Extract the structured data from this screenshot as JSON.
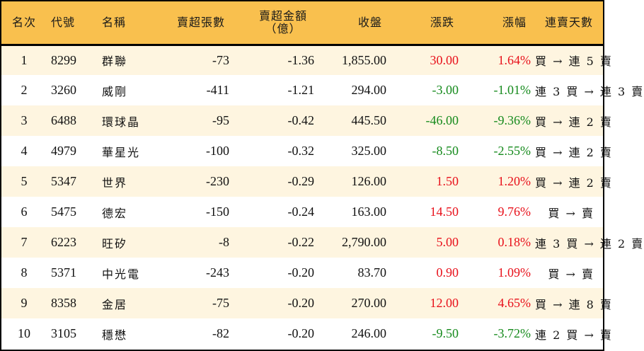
{
  "table": {
    "headers": {
      "rank": "名次",
      "code": "代號",
      "name": "名稱",
      "net_sell_lots": "賣超張數",
      "net_sell_amount_line1": "賣超金額",
      "net_sell_amount_line2": "（億）",
      "close": "收盤",
      "change": "漲跌",
      "change_pct": "漲幅",
      "streak": "連賣天數"
    },
    "colors": {
      "up": "#E8101A",
      "down": "#158A1C",
      "header_bg": "#F9C04E",
      "row_alt_bg": "#FEF5E0"
    },
    "rows": [
      {
        "rank": "1",
        "code": "8299",
        "name": "群聯",
        "lots": "-73",
        "amount": "-1.36",
        "close": "1,855.00",
        "change": "30.00",
        "pct": "1.64%",
        "dir": "up",
        "streak": "買 → 連 5 賣"
      },
      {
        "rank": "2",
        "code": "3260",
        "name": "威剛",
        "lots": "-411",
        "amount": "-1.21",
        "close": "294.00",
        "change": "-3.00",
        "pct": "-1.01%",
        "dir": "down",
        "streak": "連 3 買 → 連 3 賣"
      },
      {
        "rank": "3",
        "code": "6488",
        "name": "環球晶",
        "lots": "-95",
        "amount": "-0.42",
        "close": "445.50",
        "change": "-46.00",
        "pct": "-9.36%",
        "dir": "down",
        "streak": "買 → 連 2 賣"
      },
      {
        "rank": "4",
        "code": "4979",
        "name": "華星光",
        "lots": "-100",
        "amount": "-0.32",
        "close": "325.00",
        "change": "-8.50",
        "pct": "-2.55%",
        "dir": "down",
        "streak": "買 → 連 2 賣"
      },
      {
        "rank": "5",
        "code": "5347",
        "name": "世界",
        "lots": "-230",
        "amount": "-0.29",
        "close": "126.00",
        "change": "1.50",
        "pct": "1.20%",
        "dir": "up",
        "streak": "買 → 連 2 賣"
      },
      {
        "rank": "6",
        "code": "5475",
        "name": "德宏",
        "lots": "-150",
        "amount": "-0.24",
        "close": "163.00",
        "change": "14.50",
        "pct": "9.76%",
        "dir": "up",
        "streak": "買 → 賣"
      },
      {
        "rank": "7",
        "code": "6223",
        "name": "旺矽",
        "lots": "-8",
        "amount": "-0.22",
        "close": "2,790.00",
        "change": "5.00",
        "pct": "0.18%",
        "dir": "up",
        "streak": "連 3 買 → 連 2 賣"
      },
      {
        "rank": "8",
        "code": "5371",
        "name": "中光電",
        "lots": "-243",
        "amount": "-0.20",
        "close": "83.70",
        "change": "0.90",
        "pct": "1.09%",
        "dir": "up",
        "streak": "買 → 賣"
      },
      {
        "rank": "9",
        "code": "8358",
        "name": "金居",
        "lots": "-75",
        "amount": "-0.20",
        "close": "270.00",
        "change": "12.00",
        "pct": "4.65%",
        "dir": "up",
        "streak": "買 → 連 8 賣"
      },
      {
        "rank": "10",
        "code": "3105",
        "name": "穩懋",
        "lots": "-82",
        "amount": "-0.20",
        "close": "246.00",
        "change": "-9.50",
        "pct": "-3.72%",
        "dir": "down",
        "streak": "連 2 買 → 賣"
      }
    ]
  }
}
